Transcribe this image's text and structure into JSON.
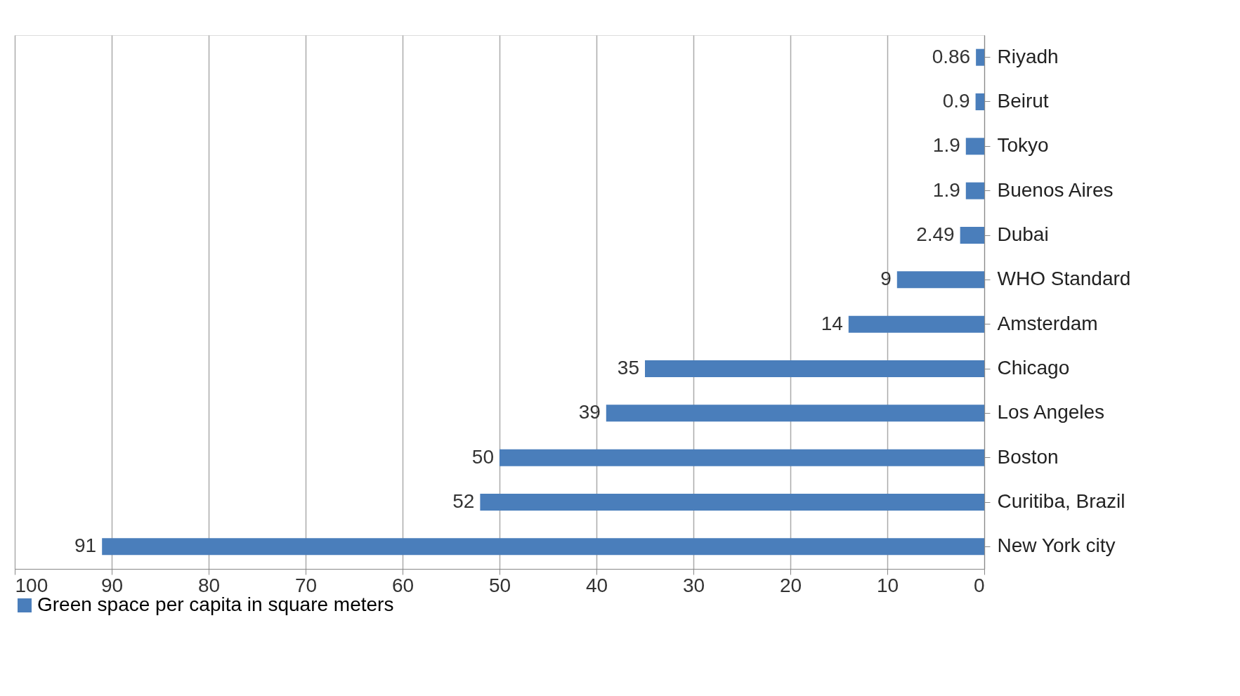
{
  "chart_data": {
    "type": "bar",
    "orientation": "horizontal",
    "categories": [
      "Riyadh",
      "Beirut",
      "Tokyo",
      "Buenos Aires",
      "Dubai",
      "WHO Standard",
      "Amsterdam",
      "Chicago",
      "Los Angeles",
      "Boston",
      "Curitiba, Brazil",
      "New York city"
    ],
    "series": [
      {
        "name": "Green space per capita in square meters",
        "color": "#4a7ebb",
        "values": [
          0.86,
          0.9,
          1.9,
          1.9,
          2.49,
          9,
          14,
          35,
          39,
          50,
          52,
          91
        ]
      }
    ],
    "xlim": [
      100,
      0
    ],
    "xticks": [
      0,
      10,
      20,
      30,
      40,
      50,
      60,
      70,
      80,
      90,
      100
    ],
    "grid": "x",
    "legend": "bottom",
    "data_labels": true
  }
}
